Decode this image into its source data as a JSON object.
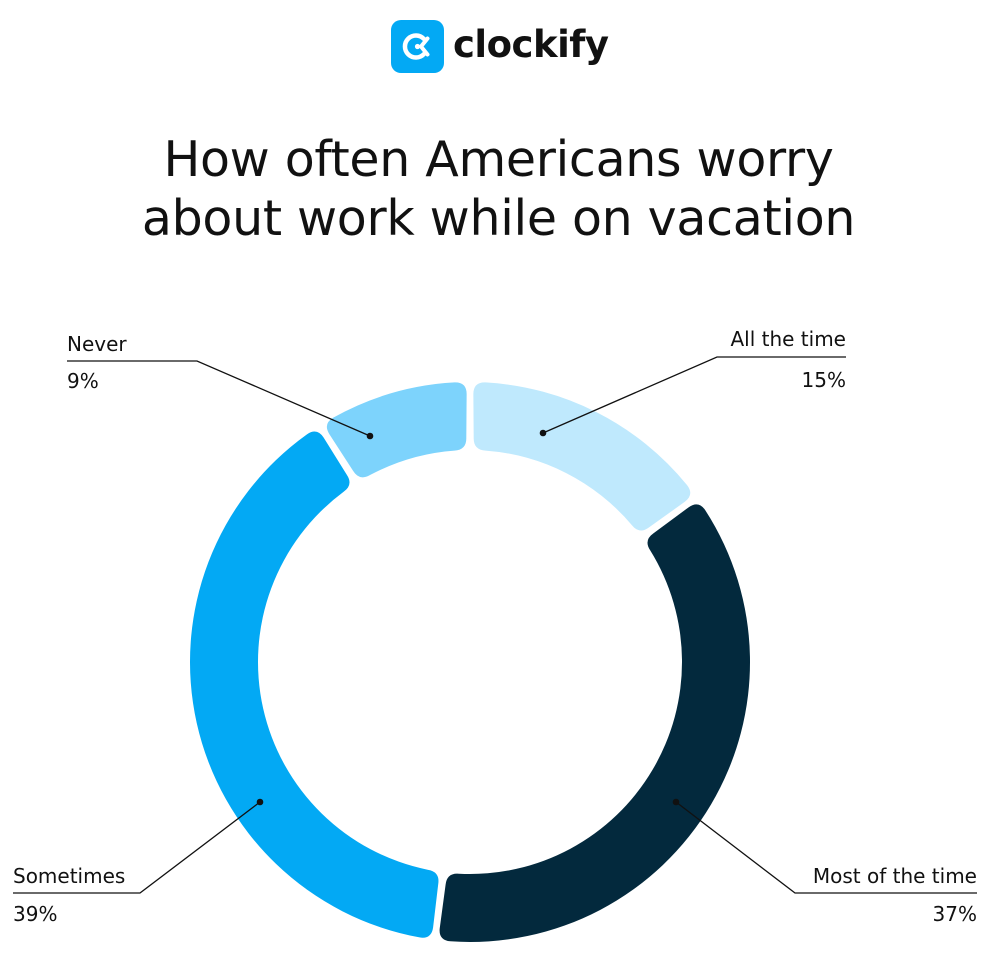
{
  "logo": {
    "brand": "clockify",
    "icon": "clockify-logo-icon",
    "accent": "#03a9f4"
  },
  "title": {
    "line1": "How often Americans worry",
    "line2": "about work while on vacation"
  },
  "chart_data": {
    "type": "pie",
    "subtype": "donut",
    "title": "How often Americans worry about work while on vacation",
    "categories": [
      "All the time",
      "Most of the time",
      "Sometimes",
      "Never"
    ],
    "values": [
      15,
      37,
      39,
      9
    ],
    "unit": "%",
    "colors": [
      "#bfe9fd",
      "#03293d",
      "#03a9f4",
      "#7dd3fc"
    ],
    "start_angle": "12 o'clock",
    "direction": "clockwise",
    "legend": "none (callout labels)"
  },
  "labels": {
    "never": {
      "name": "Never",
      "value": "9%"
    },
    "all_the_time": {
      "name": "All the time",
      "value": "15%"
    },
    "sometimes": {
      "name": "Sometimes",
      "value": "39%"
    },
    "most_of_the_time": {
      "name": "Most of the time",
      "value": "37%"
    }
  }
}
